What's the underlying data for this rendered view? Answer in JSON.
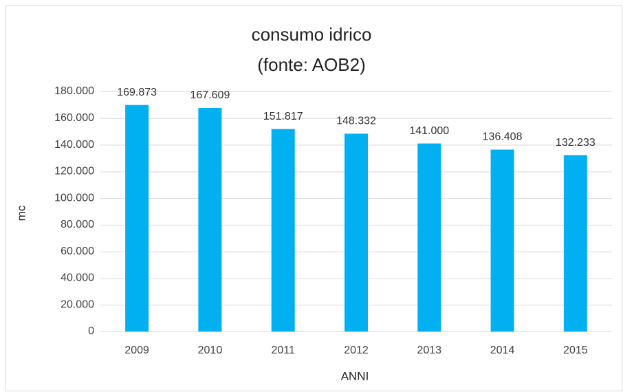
{
  "chart_data": {
    "type": "bar",
    "title": "consumo idrico",
    "subtitle": "(fonte: AOB2)",
    "x_label": "ANNI",
    "y_label": "mc",
    "categories": [
      "2009",
      "2010",
      "2011",
      "2012",
      "2013",
      "2014",
      "2015"
    ],
    "values": [
      169873,
      167609,
      151817,
      148332,
      141000,
      136408,
      132233
    ],
    "value_labels": [
      "169.873",
      "167.609",
      "151.817",
      "148.332",
      "141.000",
      "136.408",
      "132.233"
    ],
    "color": "#00b0f0",
    "ylim": [
      0,
      180000
    ],
    "yticks": [
      0,
      {
        "value": 20000,
        "label": "20.000"
      },
      {
        "value": 40000,
        "label": "40.000"
      },
      {
        "value": 60000,
        "label": "60.000"
      },
      {
        "value": 80000,
        "label": "80.000"
      },
      {
        "value": 100000,
        "label": "100.000"
      },
      {
        "value": 120000,
        "label": "120.000"
      },
      {
        "value": 140000,
        "label": "140.000"
      },
      {
        "value": 160000,
        "label": "160.000"
      },
      {
        "value": 180000,
        "label": "180.000"
      }
    ],
    "grid": true
  }
}
